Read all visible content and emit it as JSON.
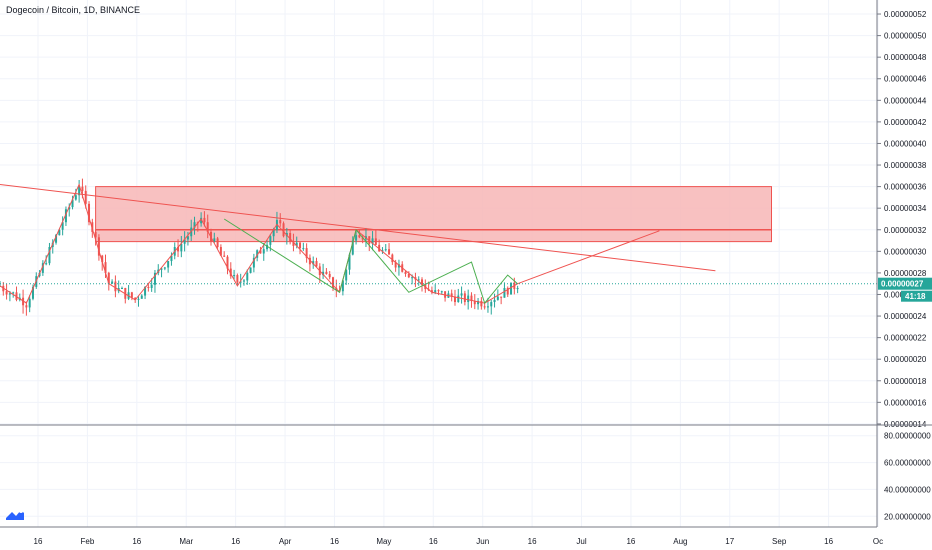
{
  "symbol_title": "Dogecoin / Bitcoin, 1D, BINANCE",
  "colors": {
    "up": "#26a69a",
    "down": "#ef5350",
    "grid": "#f0f3fa",
    "axis_text": "#131722",
    "zone_fill": "#f7b6b6",
    "zone_border": "#ef5350",
    "line_red": "#ef5350",
    "line_green": "#4caf50",
    "price_badge": "#26a69a",
    "separator": "#787b86",
    "logo": "#2962ff"
  },
  "icons": [
    "tradingview-logo-icon"
  ],
  "chart_data": {
    "type": "candlestick",
    "title": "Dogecoin / Bitcoin, 1D, BINANCE",
    "price_axis": {
      "ticks": [
        "0.00000052",
        "0.00000050",
        "0.00000048",
        "0.00000046",
        "0.00000044",
        "0.00000042",
        "0.00000040",
        "0.00000038",
        "0.00000036",
        "0.00000034",
        "0.00000032",
        "0.00000030",
        "0.00000028",
        "0.00000026",
        "0.00000024",
        "0.00000022",
        "0.00000020",
        "0.00000018",
        "0.00000016",
        "0.00000014"
      ],
      "range": [
        1.39e-07,
        5.33e-07
      ]
    },
    "last_price": {
      "value": "0.00000027",
      "countdown": "41:18"
    },
    "time_axis": {
      "labels": [
        "16",
        "Feb",
        "16",
        "Mar",
        "16",
        "Apr",
        "16",
        "May",
        "16",
        "Jun",
        "16",
        "Jul",
        "16",
        "Aug",
        "17",
        "Sep",
        "16",
        "Oc"
      ],
      "range": [
        "2020-01-09",
        "2020-10-01"
      ]
    },
    "indicator_axis": {
      "ticks": [
        "80.00000000",
        "60.00000000",
        "40.00000000",
        "20.00000000"
      ],
      "range": [
        12,
        88
      ]
    },
    "resistance_zone": {
      "from": "2020-02-07",
      "to": "2020-08-30",
      "top": 3.6e-07,
      "bottom": 3.09e-07,
      "mid_line": 3.2e-07
    },
    "trendline": {
      "points": [
        [
          "2020-01-09",
          3.62e-07
        ],
        [
          "2020-08-13",
          2.82e-07
        ]
      ]
    },
    "projection_line": {
      "points": [
        [
          "2020-06-14",
          2.7e-07
        ],
        [
          "2020-07-27",
          3.19e-07
        ]
      ]
    },
    "zigzag_red": {
      "points": [
        [
          "2020-01-09",
          2.68e-07
        ],
        [
          "2020-01-17",
          2.52e-07
        ],
        [
          "2020-02-02",
          3.62e-07
        ],
        [
          "2020-02-11",
          2.7e-07
        ],
        [
          "2020-02-19",
          2.55e-07
        ],
        [
          "2020-03-10",
          3.3e-07
        ],
        [
          "2020-03-21",
          2.68e-07
        ],
        [
          "2020-04-02",
          3.25e-07
        ],
        [
          "2020-04-21",
          2.62e-07
        ],
        [
          "2020-04-26",
          3.2e-07
        ],
        [
          "2020-05-19",
          2.62e-07
        ],
        [
          "2020-06-04",
          2.52e-07
        ],
        [
          "2020-06-14",
          2.7e-07
        ]
      ]
    },
    "zigzag_green": {
      "points": [
        [
          "2020-03-17",
          3.3e-07
        ],
        [
          "2020-04-21",
          2.62e-07
        ],
        [
          "2020-04-26",
          3.2e-07
        ],
        [
          "2020-05-12",
          2.62e-07
        ],
        [
          "2020-05-31",
          2.9e-07
        ],
        [
          "2020-06-04",
          2.52e-07
        ],
        [
          "2020-06-11",
          2.78e-07
        ],
        [
          "2020-06-14",
          2.7e-07
        ]
      ]
    }
  }
}
